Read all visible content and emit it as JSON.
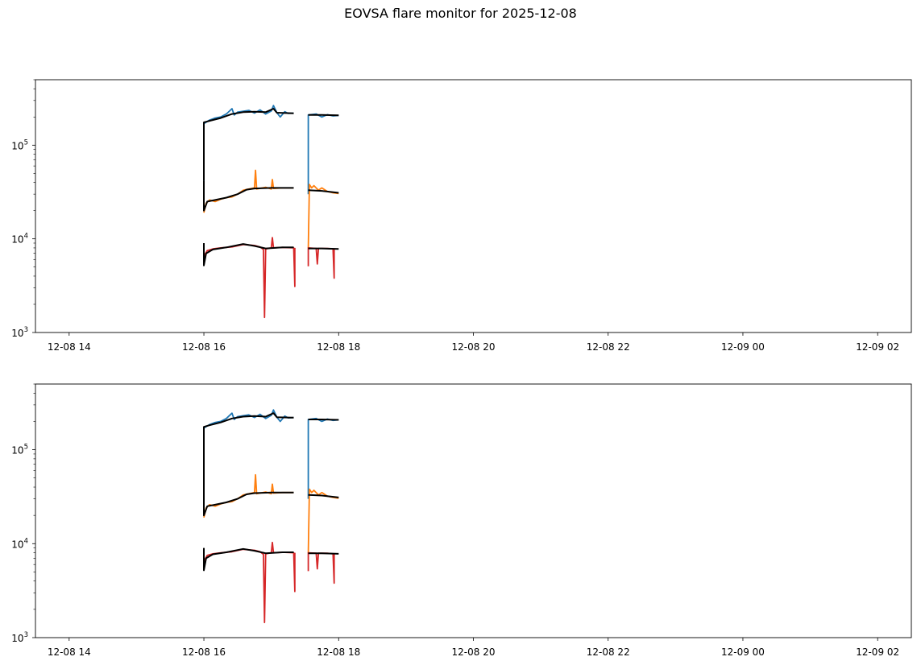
{
  "figure": {
    "title": "EOVSA flare monitor for 2025-12-08"
  },
  "chart_data": [
    {
      "type": "line",
      "yscale": "log",
      "ylim": [
        1000,
        500000
      ],
      "xlim": [
        "2025-12-08 13:30",
        "2025-12-09 02:30"
      ],
      "x_ticks": [
        {
          "t": "2025-12-08 14:00",
          "label": "12-08 14"
        },
        {
          "t": "2025-12-08 16:00",
          "label": "12-08 16"
        },
        {
          "t": "2025-12-08 18:00",
          "label": "12-08 18"
        },
        {
          "t": "2025-12-08 20:00",
          "label": "12-08 20"
        },
        {
          "t": "2025-12-08 22:00",
          "label": "12-08 22"
        },
        {
          "t": "2025-12-09 00:00",
          "label": "12-09 00"
        },
        {
          "t": "2025-12-09 02:00",
          "label": "12-09 02"
        }
      ],
      "y_ticks": [
        {
          "v": 1000,
          "base": "10",
          "exp": "3"
        },
        {
          "v": 10000,
          "base": "10",
          "exp": "4"
        },
        {
          "v": 100000,
          "base": "10",
          "exp": "5"
        }
      ],
      "legend": false,
      "grid": false,
      "series": [
        {
          "color": "#1f77b4",
          "smooth": false,
          "points": [
            [
              "2025-12-08 16:00",
              26000
            ],
            [
              "2025-12-08 16:00",
              170000
            ],
            [
              "2025-12-08 16:05",
              185000
            ],
            [
              "2025-12-08 16:10",
              195000
            ],
            [
              "2025-12-08 16:15",
              200000
            ],
            [
              "2025-12-08 16:20",
              215000
            ],
            [
              "2025-12-08 16:25",
              245000
            ],
            [
              "2025-12-08 16:27",
              210000
            ],
            [
              "2025-12-08 16:30",
              225000
            ],
            [
              "2025-12-08 16:40",
              235000
            ],
            [
              "2025-12-08 16:45",
              220000
            ],
            [
              "2025-12-08 16:50",
              238000
            ],
            [
              "2025-12-08 16:55",
              215000
            ],
            [
              "2025-12-08 17:00",
              232000
            ],
            [
              "2025-12-08 17:02",
              265000
            ],
            [
              "2025-12-08 17:05",
              222000
            ],
            [
              "2025-12-08 17:08",
              200000
            ],
            [
              "2025-12-08 17:12",
              228000
            ],
            [
              "2025-12-08 17:15",
              218000
            ],
            [
              "2025-12-08 17:20",
              220000
            ],
            null,
            [
              "2025-12-08 17:33",
              30000
            ],
            [
              "2025-12-08 17:33",
              210000
            ],
            [
              "2025-12-08 17:40",
              215000
            ],
            [
              "2025-12-08 17:45",
              200000
            ],
            [
              "2025-12-08 17:50",
              212000
            ],
            [
              "2025-12-08 17:55",
              205000
            ],
            [
              "2025-12-08 18:00",
              208000
            ]
          ]
        },
        {
          "color": "#ff7f0e",
          "smooth": false,
          "points": [
            [
              "2025-12-08 16:00",
              19000
            ],
            [
              "2025-12-08 16:02",
              24000
            ],
            [
              "2025-12-08 16:05",
              26000
            ],
            [
              "2025-12-08 16:10",
              25000
            ],
            [
              "2025-12-08 16:15",
              26500
            ],
            [
              "2025-12-08 16:20",
              27500
            ],
            [
              "2025-12-08 16:25",
              28000
            ],
            [
              "2025-12-08 16:30",
              30000
            ],
            [
              "2025-12-08 16:35",
              33000
            ],
            [
              "2025-12-08 16:40",
              34000
            ],
            [
              "2025-12-08 16:45",
              35000
            ],
            [
              "2025-12-08 16:46",
              54000
            ],
            [
              "2025-12-08 16:47",
              34000
            ],
            [
              "2025-12-08 16:55",
              35500
            ],
            [
              "2025-12-08 17:00",
              34000
            ],
            [
              "2025-12-08 17:01",
              43000
            ],
            [
              "2025-12-08 17:02",
              34500
            ],
            [
              "2025-12-08 17:10",
              35000
            ],
            [
              "2025-12-08 17:20",
              35000
            ],
            null,
            [
              "2025-12-08 17:33",
              8000
            ],
            [
              "2025-12-08 17:34",
              38000
            ],
            [
              "2025-12-08 17:36",
              35000
            ],
            [
              "2025-12-08 17:38",
              37000
            ],
            [
              "2025-12-08 17:42",
              33000
            ],
            [
              "2025-12-08 17:45",
              35000
            ],
            [
              "2025-12-08 17:50",
              32000
            ],
            [
              "2025-12-08 17:55",
              31000
            ],
            [
              "2025-12-08 18:00",
              30500
            ]
          ]
        },
        {
          "color": "#d62728",
          "smooth": false,
          "points": [
            [
              "2025-12-08 16:00",
              6500
            ],
            [
              "2025-12-08 16:03",
              7500
            ],
            [
              "2025-12-08 16:08",
              7800
            ],
            [
              "2025-12-08 16:15",
              8000
            ],
            [
              "2025-12-08 16:25",
              8200
            ],
            [
              "2025-12-08 16:35",
              8700
            ],
            [
              "2025-12-08 16:45",
              8500
            ],
            [
              "2025-12-08 16:50",
              8200
            ],
            [
              "2025-12-08 16:53",
              7700
            ],
            [
              "2025-12-08 16:54",
              1450
            ],
            [
              "2025-12-08 16:55",
              7800
            ],
            [
              "2025-12-08 17:00",
              8000
            ],
            [
              "2025-12-08 17:01",
              10300
            ],
            [
              "2025-12-08 17:02",
              8000
            ],
            [
              "2025-12-08 17:10",
              8100
            ],
            [
              "2025-12-08 17:20",
              8000
            ],
            [
              "2025-12-08 17:21",
              3100
            ],
            [
              "2025-12-08 17:21",
              8000
            ],
            null,
            [
              "2025-12-08 17:33",
              5100
            ],
            [
              "2025-12-08 17:33",
              8000
            ],
            [
              "2025-12-08 17:40",
              7900
            ],
            [
              "2025-12-08 17:41",
              5400
            ],
            [
              "2025-12-08 17:42",
              7900
            ],
            [
              "2025-12-08 17:50",
              7900
            ],
            [
              "2025-12-08 17:55",
              7800
            ],
            [
              "2025-12-08 17:56",
              3800
            ],
            [
              "2025-12-08 17:56",
              7800
            ]
          ]
        },
        {
          "color": "#000000",
          "smooth": true,
          "points": [
            [
              "2025-12-08 16:00",
              42000
            ],
            [
              "2025-12-08 16:00",
              175000
            ],
            [
              "2025-12-08 16:05",
              182000
            ],
            [
              "2025-12-08 16:15",
              195000
            ],
            [
              "2025-12-08 16:25",
              215000
            ],
            [
              "2025-12-08 16:35",
              225000
            ],
            [
              "2025-12-08 16:45",
              228000
            ],
            [
              "2025-12-08 16:55",
              225000
            ],
            [
              "2025-12-08 17:02",
              245000
            ],
            [
              "2025-12-08 17:05",
              222000
            ],
            [
              "2025-12-08 17:15",
              220000
            ],
            [
              "2025-12-08 17:20",
              219000
            ],
            null,
            [
              "2025-12-08 17:33",
              210000
            ],
            [
              "2025-12-08 17:45",
              210000
            ],
            [
              "2025-12-08 18:00",
              208000
            ]
          ]
        },
        {
          "color": "#000000",
          "smooth": true,
          "points": [
            [
              "2025-12-08 16:00",
              42000
            ],
            [
              "2025-12-08 16:00",
              20000
            ],
            [
              "2025-12-08 16:03",
              25000
            ],
            [
              "2025-12-08 16:10",
              26000
            ],
            [
              "2025-12-08 16:20",
              27500
            ],
            [
              "2025-12-08 16:30",
              30000
            ],
            [
              "2025-12-08 16:38",
              33500
            ],
            [
              "2025-12-08 16:45",
              34500
            ],
            [
              "2025-12-08 17:00",
              35000
            ],
            [
              "2025-12-08 17:20",
              35000
            ],
            null,
            [
              "2025-12-08 17:33",
              33000
            ],
            [
              "2025-12-08 17:45",
              32500
            ],
            [
              "2025-12-08 18:00",
              31000
            ]
          ]
        },
        {
          "color": "#000000",
          "smooth": true,
          "points": [
            [
              "2025-12-08 16:00",
              9000
            ],
            [
              "2025-12-08 16:00",
              5200
            ],
            [
              "2025-12-08 16:02",
              7000
            ],
            [
              "2025-12-08 16:08",
              7700
            ],
            [
              "2025-12-08 16:20",
              8100
            ],
            [
              "2025-12-08 16:35",
              8800
            ],
            [
              "2025-12-08 16:45",
              8400
            ],
            [
              "2025-12-08 16:55",
              7900
            ],
            [
              "2025-12-08 17:10",
              8100
            ],
            [
              "2025-12-08 17:20",
              8100
            ],
            null,
            [
              "2025-12-08 17:33",
              7900
            ],
            [
              "2025-12-08 17:45",
              7900
            ],
            [
              "2025-12-08 18:00",
              7800
            ]
          ]
        }
      ]
    }
  ]
}
